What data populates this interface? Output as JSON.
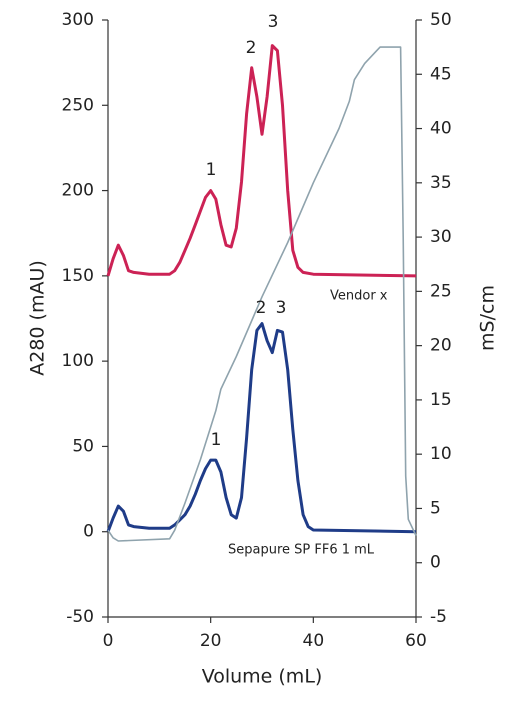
{
  "chart_data": {
    "type": "line",
    "xlabel": "Volume (mL)",
    "ylabel": "A280 (mAU)",
    "y2label": "mS/cm",
    "xlim": [
      0,
      60
    ],
    "xticks": [
      0,
      20,
      40,
      60
    ],
    "ylim": [
      -50,
      300
    ],
    "yticks": [
      -50,
      0,
      50,
      100,
      150,
      200,
      250,
      300
    ],
    "y2lim": [
      -5,
      50
    ],
    "y2ticks": [
      -5,
      0,
      5,
      10,
      15,
      20,
      25,
      30,
      35,
      40,
      45,
      50
    ],
    "grid": false,
    "annotations": [
      "1",
      "2",
      "3",
      "1",
      "2",
      "3"
    ],
    "series": [
      {
        "name": "Vendor x",
        "color": "#cc2255",
        "x": [
          0,
          1,
          2,
          3,
          4,
          5,
          8,
          12,
          13,
          14,
          15,
          16,
          17,
          18,
          19,
          20,
          21,
          22,
          23,
          24,
          25,
          26,
          27,
          28,
          29,
          30,
          31,
          32,
          33,
          34,
          35,
          36,
          37,
          38,
          40,
          60
        ],
        "values": [
          150,
          160,
          168,
          162,
          153,
          152,
          151,
          151,
          153,
          158,
          165,
          172,
          180,
          188,
          196,
          200,
          195,
          180,
          168,
          167,
          178,
          205,
          245,
          272,
          255,
          233,
          255,
          285,
          282,
          250,
          200,
          165,
          155,
          152,
          151,
          150
        ]
      },
      {
        "name": "Sepapure SP FF6 1 mL",
        "color": "#1f3c88",
        "x": [
          0,
          1,
          2,
          3,
          4,
          5,
          8,
          12,
          13,
          14,
          15,
          16,
          17,
          18,
          19,
          20,
          21,
          22,
          23,
          24,
          25,
          26,
          27,
          28,
          29,
          30,
          31,
          32,
          33,
          34,
          35,
          36,
          37,
          38,
          39,
          40,
          60
        ],
        "values": [
          0,
          8,
          15,
          12,
          4,
          3,
          2,
          2,
          4,
          7,
          10,
          15,
          22,
          30,
          37,
          42,
          42,
          35,
          20,
          10,
          8,
          20,
          55,
          95,
          118,
          122,
          112,
          105,
          118,
          117,
          95,
          60,
          30,
          10,
          3,
          1,
          0
        ]
      },
      {
        "color": "#8fa3ad",
        "axis": "y2",
        "x": [
          0,
          1,
          2,
          12,
          13,
          15,
          18,
          20,
          21,
          22,
          25,
          30,
          35,
          40,
          45,
          47,
          48,
          50,
          52,
          53,
          57,
          57.5,
          58,
          58.5,
          60
        ],
        "values": [
          3,
          2.3,
          2,
          2.2,
          3,
          5.5,
          9.5,
          12.5,
          14,
          16,
          19,
          24.5,
          29.5,
          35,
          40,
          42.5,
          44.5,
          46,
          47,
          47.5,
          47.5,
          30,
          8,
          4,
          2.5
        ]
      }
    ]
  }
}
